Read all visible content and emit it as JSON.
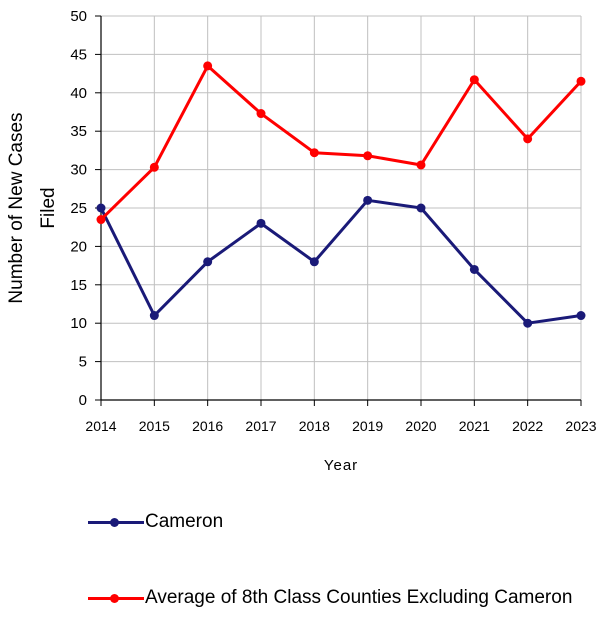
{
  "chart_data": {
    "type": "line",
    "x": [
      "2014",
      "2015",
      "2016",
      "2017",
      "2018",
      "2019",
      "2020",
      "2021",
      "2022",
      "2023"
    ],
    "series": [
      {
        "name": "Cameron",
        "values": [
          25,
          11,
          18,
          23,
          18,
          26,
          25,
          17,
          10,
          11
        ]
      },
      {
        "name": "Average of 8th Class Counties Excluding Cameron",
        "values": [
          23.5,
          30.3,
          43.5,
          37.3,
          32.2,
          31.8,
          30.6,
          41.7,
          34,
          41.5
        ]
      }
    ],
    "xlabel": "Year",
    "ylabel": "Number of New Cases Filed",
    "ylim": [
      0,
      50
    ],
    "yticks": [
      0,
      5,
      10,
      15,
      20,
      25,
      30,
      35,
      40,
      45,
      50
    ],
    "grid": true,
    "legend": "bottom"
  },
  "colors": {
    "Cameron": "#1a1a78",
    "Average of 8th Class Counties Excluding Cameron": "#ff0000",
    "grid": "#c0c0c0"
  }
}
